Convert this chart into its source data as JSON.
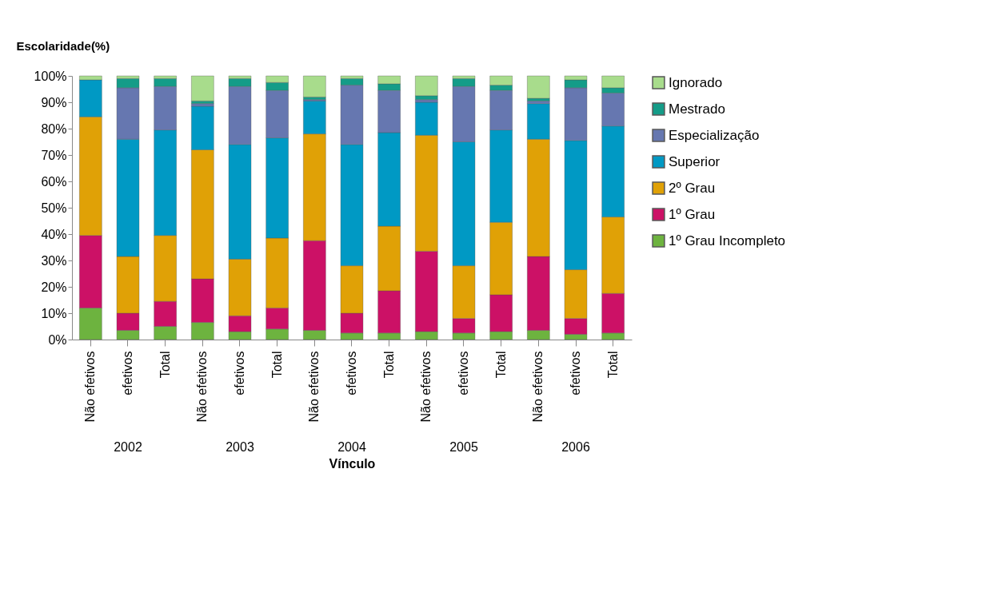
{
  "chart_data": {
    "type": "bar",
    "stacked": true,
    "ylabel": "Escolaridade(%)",
    "xlabel": "Vínculo",
    "legend": "right",
    "grid": false,
    "categories": [
      "Não efetivos",
      "efetivos",
      "Total",
      "Não efetivos",
      "efetivos",
      "Total",
      "Não efetivos",
      "efetivos",
      "Total",
      "Não efetivos",
      "efetivos",
      "Total",
      "Não efetivos",
      "efetivos",
      "Total"
    ],
    "annotations": [
      "2002",
      "2003",
      "2004",
      "2005",
      "2006"
    ],
    "ylim": [
      0,
      100
    ],
    "yticks": [
      {
        "value": 0,
        "label": "0%"
      },
      {
        "value": 10,
        "label": "10%"
      },
      {
        "value": 20,
        "label": "20%"
      },
      {
        "value": 30,
        "label": "30%"
      },
      {
        "value": 40,
        "label": "40%"
      },
      {
        "value": 50,
        "label": "50%"
      },
      {
        "value": 60,
        "label": "60%"
      },
      {
        "value": 70,
        "label": "70%"
      },
      {
        "value": 80,
        "label": "80%"
      },
      {
        "value": 90,
        "label": "90%"
      },
      {
        "value": 100,
        "label": "100%"
      }
    ],
    "series": [
      {
        "name": "1º Grau Incompleto",
        "color": "#6db33f",
        "values": [
          12,
          3.5,
          5,
          6.5,
          3,
          4,
          3.5,
          2.5,
          2.5,
          3,
          2.5,
          3,
          3.5,
          2,
          2.5
        ]
      },
      {
        "name": "1º Grau",
        "color": "#cc1166",
        "values": [
          27.5,
          6.5,
          9.5,
          16.5,
          6,
          8,
          34,
          7.5,
          16,
          30.5,
          5.5,
          14,
          28,
          6,
          15
        ]
      },
      {
        "name": "2º Grau",
        "color": "#e0a106",
        "values": [
          45,
          21.5,
          25,
          49,
          21.5,
          26.5,
          40.5,
          18,
          24.5,
          44,
          20,
          27.5,
          44.5,
          18.5,
          29
        ]
      },
      {
        "name": "Superior",
        "color": "#0099c4",
        "values": [
          14,
          44.5,
          40,
          16.5,
          43.5,
          38,
          12.5,
          46,
          35.5,
          12.5,
          47,
          35,
          13.5,
          49,
          34.5
        ]
      },
      {
        "name": "Especialização",
        "color": "#6677b0",
        "values": [
          0,
          19.5,
          16.5,
          1,
          22,
          18,
          0.5,
          22.5,
          16,
          1,
          21,
          15,
          1,
          20,
          12.5
        ]
      },
      {
        "name": "Mestrado",
        "color": "#149c88",
        "values": [
          0,
          3.5,
          3,
          1,
          3,
          3,
          1,
          2.5,
          2.5,
          1.5,
          3,
          2,
          1,
          3,
          2
        ]
      },
      {
        "name": "Ignorado",
        "color": "#a8dc8c",
        "values": [
          1.5,
          1,
          1,
          9.5,
          1,
          2.5,
          8,
          1,
          3,
          7.5,
          1,
          3.5,
          8.5,
          1.5,
          4.5
        ]
      }
    ]
  }
}
